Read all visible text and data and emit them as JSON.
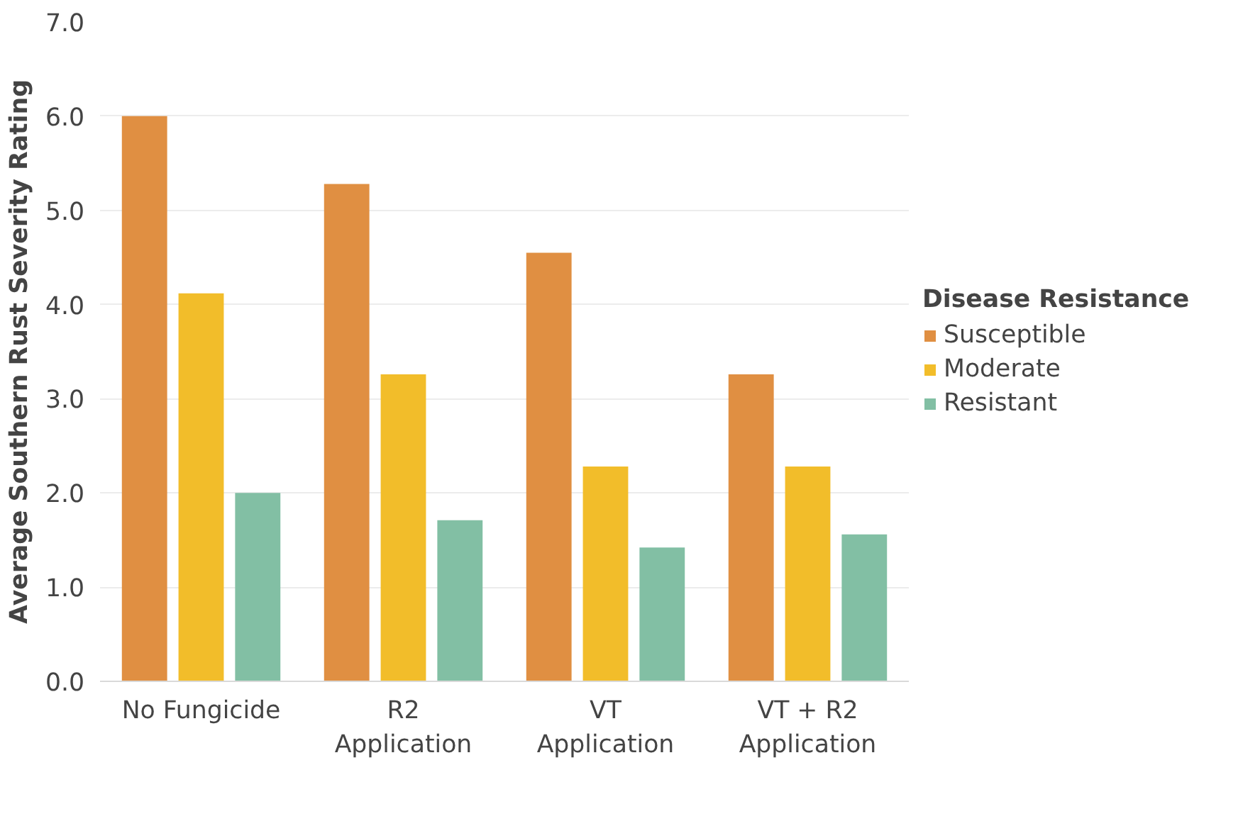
{
  "chart_data": {
    "type": "bar",
    "ylabel": "Average Southern Rust Severity Rating",
    "legend_title": "Disease Resistance",
    "categories": [
      "No Fungicide",
      "R2\nApplication",
      "VT\nApplication",
      "VT + R2\nApplication"
    ],
    "series": [
      {
        "name": "Susceptible",
        "color": "#e08f42",
        "values": [
          6.0,
          5.28,
          4.55,
          3.26
        ]
      },
      {
        "name": "Moderate",
        "color": "#f2bd2a",
        "values": [
          4.12,
          3.26,
          2.28,
          2.28
        ]
      },
      {
        "name": "Resistant",
        "color": "#82bfa4",
        "values": [
          2.0,
          1.71,
          1.42,
          1.56
        ]
      }
    ],
    "ylim": [
      0,
      7
    ],
    "yticks": [
      {
        "value": 0,
        "label": "0.0"
      },
      {
        "value": 1,
        "label": "1.0"
      },
      {
        "value": 2,
        "label": "2.0"
      },
      {
        "value": 3,
        "label": "3.0"
      },
      {
        "value": 4,
        "label": "4.0"
      },
      {
        "value": 5,
        "label": "5.0"
      },
      {
        "value": 6,
        "label": "6.0"
      },
      {
        "value": 7,
        "label": "7.0"
      }
    ],
    "grid": "y",
    "legend": "right"
  }
}
